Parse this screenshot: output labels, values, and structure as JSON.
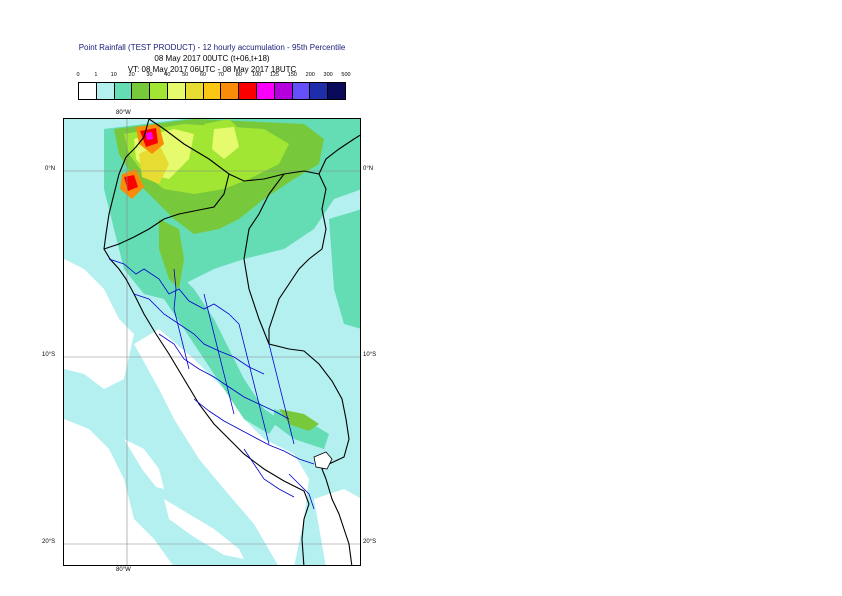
{
  "title": {
    "line1": "Point Rainfall (TEST PRODUCT) - 12 hourly accumulation - 95th Percentile",
    "line2": "08 May 2017 00UTC (t+06,t+18)",
    "line3": "VT: 08 May 2017 06UTC - 08 May 2017 18UTC"
  },
  "legend": {
    "ticks": [
      "0",
      "1",
      "10",
      "20",
      "30",
      "40",
      "50",
      "60",
      "70",
      "80",
      "100",
      "125",
      "150",
      "200",
      "300",
      "500"
    ],
    "colors": [
      "#ffffff",
      "#b4f0f0",
      "#64dcb4",
      "#78c83c",
      "#a0e632",
      "#e6fa6e",
      "#e6dc32",
      "#fac814",
      "#fa8c0a",
      "#fa0000",
      "#fa00fa",
      "#b400dc",
      "#6450fa",
      "#1e2daa",
      "#0a0a5a"
    ]
  },
  "map": {
    "lon_labels_top": [
      "80°W"
    ],
    "lon_labels_bottom": [
      "80°W"
    ],
    "lat_labels_left": [
      "0°N",
      "10°S",
      "20°S"
    ],
    "lat_labels_right": [
      "0°N",
      "10°S",
      "20°S"
    ],
    "colors": {
      "light": "#b4f0f0",
      "medium": "#64dcb4",
      "green": "#78c83c",
      "lime": "#a0e632",
      "yellow": "#e6fa6e",
      "gold": "#e6dc32",
      "orange": "#fa8c0a",
      "red": "#fa0000",
      "magenta": "#fa00fa",
      "border": "#000000",
      "region_border": "#0000cc",
      "grid": "#888888"
    }
  }
}
